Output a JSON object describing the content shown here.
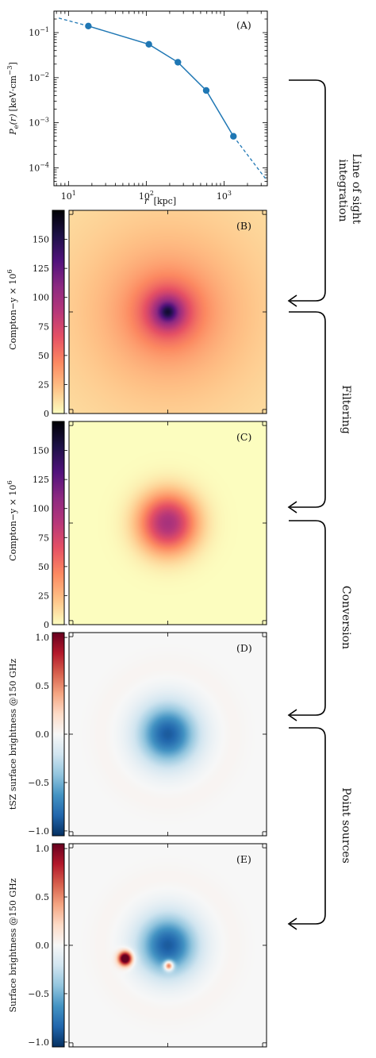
{
  "colors": {
    "line_blue": "#1f77b4",
    "magma_stops": [
      "#fcfdbf",
      "#fec287",
      "#fc8961",
      "#e65164",
      "#b73779",
      "#8c2981",
      "#51127c",
      "#1d1147",
      "#000004"
    ],
    "rdbu_stops": [
      "#053061",
      "#2166ac",
      "#4393c3",
      "#92c5de",
      "#d1e5f0",
      "#f7f7f7",
      "#fddbc7",
      "#f4a582",
      "#d6604d",
      "#b2182b",
      "#67001f"
    ],
    "axis": "#000000"
  },
  "stages": [
    "Line of sight integration",
    "Filtering",
    "Conversion",
    "Point sources"
  ],
  "chart_data": [
    {
      "panel": "(A)",
      "type": "line",
      "scale": "log-log",
      "xlabel_italic": "r",
      "xlabel_unit": "[kpc]",
      "ylabel_sym": "P",
      "ylabel_sub": "e",
      "ylabel_arg": "(r)",
      "ylabel_unit": "[keV·cm",
      "ylabel_exp": "−3",
      "ylabel_close": "]",
      "xlim": [
        6.5,
        3600
      ],
      "ylim": [
        4e-05,
        0.3
      ],
      "x_ticks": [
        {
          "value": 10,
          "base": "10",
          "exp": "1"
        },
        {
          "value": 100,
          "base": "10",
          "exp": "2"
        },
        {
          "value": 1000,
          "base": "10",
          "exp": "3"
        }
      ],
      "y_ticks": [
        {
          "value": 0.1,
          "base": "10",
          "exp": "−1"
        },
        {
          "value": 0.01,
          "base": "10",
          "exp": "−2"
        },
        {
          "value": 0.001,
          "base": "10",
          "exp": "−3"
        },
        {
          "value": 0.0001,
          "base": "10",
          "exp": "−4"
        }
      ],
      "points": [
        {
          "x": 18,
          "y": 0.14
        },
        {
          "x": 108,
          "y": 0.055
        },
        {
          "x": 255,
          "y": 0.022
        },
        {
          "x": 590,
          "y": 0.0052
        },
        {
          "x": 1320,
          "y": 0.0005
        }
      ],
      "extrapolation_left": [
        {
          "x": 7.5,
          "y": 0.21
        },
        {
          "x": 18,
          "y": 0.14
        }
      ],
      "extrapolation_right": [
        {
          "x": 1320,
          "y": 0.0005
        },
        {
          "x": 3400,
          "y": 5.8e-05
        }
      ]
    },
    {
      "panel": "(B)",
      "type": "heatmap",
      "colormap": "magma_r",
      "colorbar_label": "Compton−y × 10",
      "colorbar_exp": "6",
      "range": [
        0,
        175
      ],
      "ticks": [
        "0",
        "25",
        "50",
        "75",
        "100",
        "125",
        "150"
      ],
      "tick_values": [
        0,
        25,
        50,
        75,
        100,
        125,
        150
      ],
      "peak": 160,
      "center": [
        0.5,
        0.5
      ],
      "core_radius": 0.05,
      "beta": 0.45
    },
    {
      "panel": "(C)",
      "type": "heatmap",
      "colormap": "magma_r",
      "colorbar_label": "Compton−y × 10",
      "colorbar_exp": "6",
      "range": [
        0,
        175
      ],
      "ticks": [
        "0",
        "25",
        "50",
        "75",
        "100",
        "125",
        "150"
      ],
      "tick_values": [
        0,
        25,
        50,
        75,
        100,
        125,
        150
      ],
      "peak": 95,
      "center": [
        0.5,
        0.5
      ],
      "sigma": 0.1
    },
    {
      "panel": "(D)",
      "type": "heatmap",
      "colormap": "RdBu_r",
      "colorbar_label": "tSZ surface brightness @150 GHz",
      "range": [
        -1.05,
        1.05
      ],
      "ticks": [
        "−1.0",
        "−0.5",
        "0.0",
        "0.5",
        "1.0"
      ],
      "tick_values": [
        -1.0,
        -0.5,
        0.0,
        0.5,
        1.0
      ],
      "cluster_peak": -0.88,
      "center": [
        0.5,
        0.5
      ],
      "sigma": 0.1
    },
    {
      "panel": "(E)",
      "type": "heatmap",
      "colormap": "RdBu_r",
      "colorbar_label": "Surface brightness @150 GHz",
      "range": [
        -1.05,
        1.05
      ],
      "ticks": [
        "−1.0",
        "−0.5",
        "0.0",
        "0.5",
        "1.0"
      ],
      "tick_values": [
        -1.0,
        -0.5,
        0.0,
        0.5,
        1.0
      ],
      "cluster_peak": -0.88,
      "center": [
        0.5,
        0.5
      ],
      "sigma": 0.1,
      "point_sources": [
        {
          "x": 0.285,
          "y": 0.565,
          "amp": 1.45,
          "sigma": 0.024
        },
        {
          "x": 0.505,
          "y": 0.6,
          "amp": 1.05,
          "sigma": 0.016
        }
      ]
    }
  ]
}
